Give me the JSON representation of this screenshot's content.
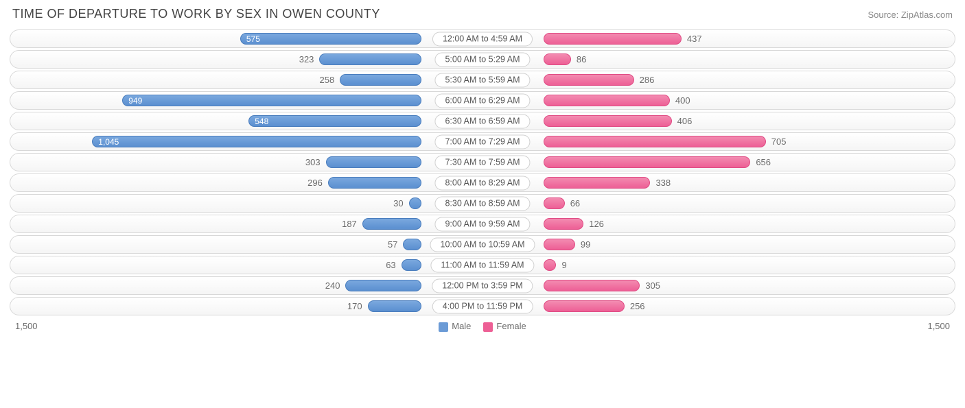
{
  "title": "TIME OF DEPARTURE TO WORK BY SEX IN OWEN COUNTY",
  "source": "Source: ZipAtlas.com",
  "chart": {
    "type": "diverging-bar",
    "max_value": 1500,
    "axis_left_label": "1,500",
    "axis_right_label": "1,500",
    "male_color": "#6b9bd6",
    "male_border": "#4a7dbd",
    "female_color": "#ed5f95",
    "female_border": "#e04c84",
    "track_bg": "#f7f7f7",
    "track_border": "#d8d8d8",
    "label_bg": "#ffffff",
    "label_border": "#d0d0d0",
    "text_color": "#6b6b6b",
    "value_fontsize": 13,
    "label_fontsize": 12.5,
    "title_fontsize": 18,
    "rows": [
      {
        "category": "12:00 AM to 4:59 AM",
        "male": 575,
        "male_label": "575",
        "female": 437,
        "female_label": "437"
      },
      {
        "category": "5:00 AM to 5:29 AM",
        "male": 323,
        "male_label": "323",
        "female": 86,
        "female_label": "86"
      },
      {
        "category": "5:30 AM to 5:59 AM",
        "male": 258,
        "male_label": "258",
        "female": 286,
        "female_label": "286"
      },
      {
        "category": "6:00 AM to 6:29 AM",
        "male": 949,
        "male_label": "949",
        "female": 400,
        "female_label": "400"
      },
      {
        "category": "6:30 AM to 6:59 AM",
        "male": 548,
        "male_label": "548",
        "female": 406,
        "female_label": "406"
      },
      {
        "category": "7:00 AM to 7:29 AM",
        "male": 1045,
        "male_label": "1,045",
        "female": 705,
        "female_label": "705"
      },
      {
        "category": "7:30 AM to 7:59 AM",
        "male": 303,
        "male_label": "303",
        "female": 656,
        "female_label": "656"
      },
      {
        "category": "8:00 AM to 8:29 AM",
        "male": 296,
        "male_label": "296",
        "female": 338,
        "female_label": "338"
      },
      {
        "category": "8:30 AM to 8:59 AM",
        "male": 30,
        "male_label": "30",
        "female": 66,
        "female_label": "66"
      },
      {
        "category": "9:00 AM to 9:59 AM",
        "male": 187,
        "male_label": "187",
        "female": 126,
        "female_label": "126"
      },
      {
        "category": "10:00 AM to 10:59 AM",
        "male": 57,
        "male_label": "57",
        "female": 99,
        "female_label": "99"
      },
      {
        "category": "11:00 AM to 11:59 AM",
        "male": 63,
        "male_label": "63",
        "female": 9,
        "female_label": "9"
      },
      {
        "category": "12:00 PM to 3:59 PM",
        "male": 240,
        "male_label": "240",
        "female": 305,
        "female_label": "305"
      },
      {
        "category": "4:00 PM to 11:59 PM",
        "male": 170,
        "male_label": "170",
        "female": 256,
        "female_label": "256"
      }
    ]
  },
  "legend": {
    "male": "Male",
    "female": "Female"
  }
}
